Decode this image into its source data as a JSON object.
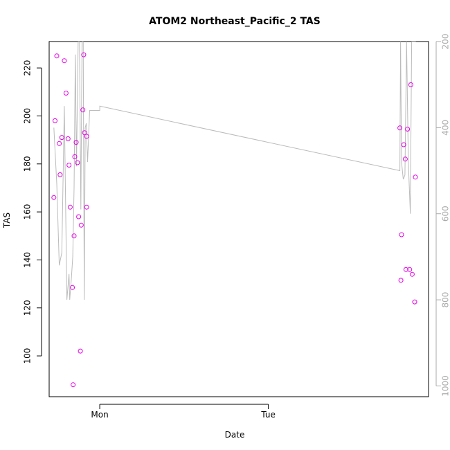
{
  "chart_data": {
    "type": "scatter",
    "title": "ATOM2 Northeast_Pacific_2 TAS",
    "xlabel": "Date",
    "ylabel": "TAS",
    "ylim": [
      83,
      231
    ],
    "y_ticks": [
      100,
      120,
      140,
      160,
      180,
      200,
      220
    ],
    "x_ticks": [
      {
        "label": "Mon",
        "day": 1.0
      },
      {
        "label": "Tue",
        "day": 2.0
      }
    ],
    "xlim": [
      0.7,
      2.95
    ],
    "right_axis": {
      "range_top": 200,
      "range_bottom": 1025,
      "ticks": [
        200,
        400,
        600,
        800,
        1000
      ],
      "color": "#aaaaaa"
    },
    "grid": false,
    "colors": {
      "points": "#e600e6",
      "line": "#bbbbbb"
    },
    "series": [
      {
        "kind": "points",
        "x": [
          0.728,
          0.735,
          0.745,
          0.76,
          0.765,
          0.775,
          0.79,
          0.8,
          0.812,
          0.818,
          0.825,
          0.838,
          0.842,
          0.848,
          0.852,
          0.86,
          0.868,
          0.875,
          0.885,
          0.89,
          0.9,
          0.905,
          0.91,
          0.922,
          0.922,
          2.78,
          2.786,
          2.79,
          2.803,
          2.812,
          2.816,
          2.825,
          2.838,
          2.845,
          2.853,
          2.868,
          2.872
        ],
        "y": [
          166,
          198,
          225,
          188.5,
          175.5,
          191,
          223,
          209.5,
          190.5,
          179.5,
          162,
          128.5,
          88,
          150,
          183,
          189,
          180.5,
          158,
          102,
          154.5,
          202.5,
          225.5,
          193,
          162,
          191.5,
          195,
          131.5,
          150.5,
          188,
          182,
          136,
          194.5,
          136,
          213,
          134,
          122.5,
          174.5
        ]
      },
      {
        "kind": "line",
        "right_axis_values": [
          400,
          530,
          720,
          690,
          350,
          800,
          740,
          800,
          750,
          700,
          540,
          230,
          490,
          200,
          200,
          590,
          200,
          200,
          800,
          400,
          390,
          480,
          360,
          360,
          350,
          500,
          200,
          480,
          520,
          510,
          200,
          480,
          600,
          200,
          200
        ],
        "x": [
          0.728,
          0.745,
          0.76,
          0.775,
          0.79,
          0.805,
          0.818,
          0.822,
          0.832,
          0.84,
          0.848,
          0.855,
          0.862,
          0.872,
          0.88,
          0.888,
          0.895,
          0.902,
          0.908,
          0.914,
          0.92,
          0.928,
          0.94,
          1.0,
          1.0,
          2.78,
          2.784,
          2.79,
          2.8,
          2.81,
          2.82,
          2.83,
          2.842,
          2.85,
          2.875
        ]
      }
    ]
  }
}
